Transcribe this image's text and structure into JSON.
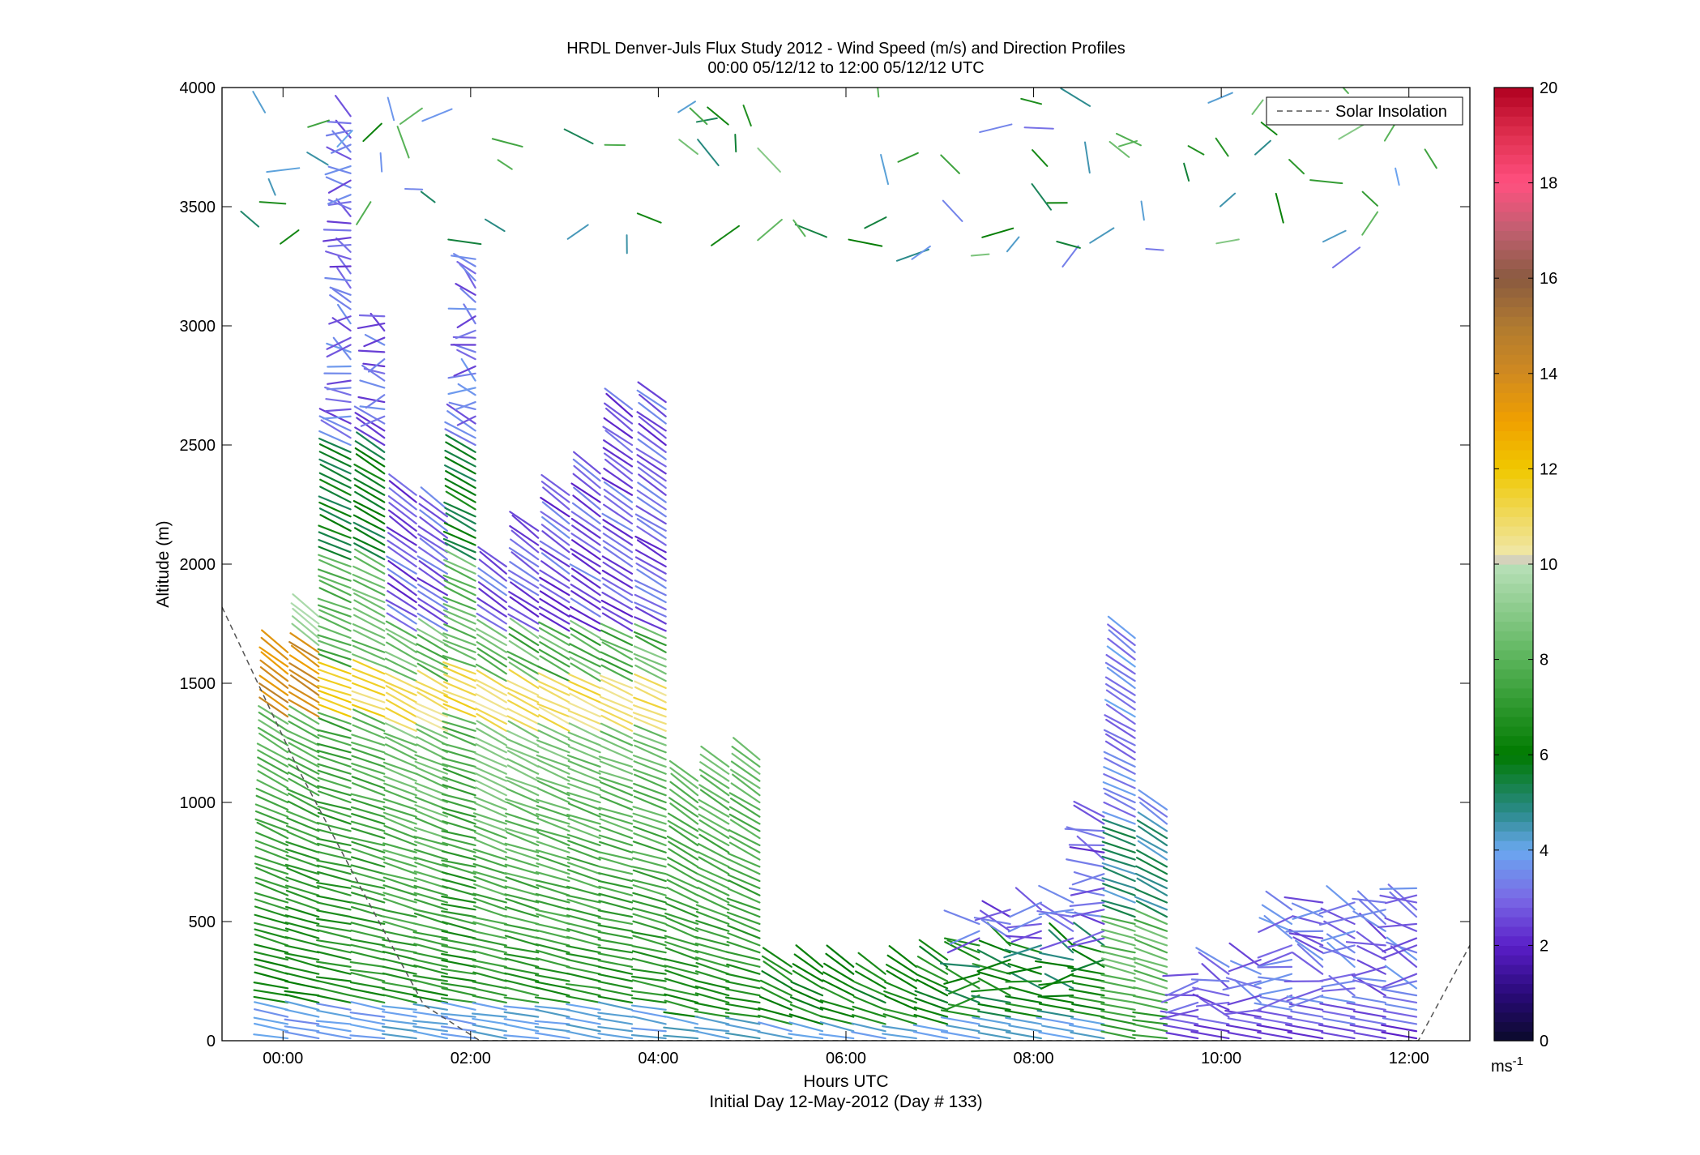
{
  "chart_data": {
    "type": "scatter",
    "title_line1": "HRDL Denver-Juls Flux Study 2012 - Wind Speed (m/s) and Direction Profiles",
    "title_line2": "00:00 05/12/12 to 12:00 05/12/12  UTC",
    "xlabel": "Hours UTC",
    "xlabel_sub": "Initial Day 12-May-2012 (Day # 133)",
    "ylabel": "Altitude (m)",
    "xlim": [
      -0.65,
      12.65
    ],
    "ylim": [
      0,
      4000
    ],
    "xticks": [
      0,
      2,
      4,
      6,
      8,
      10,
      12
    ],
    "xtick_labels": [
      "00:00",
      "02:00",
      "04:00",
      "06:00",
      "08:00",
      "10:00",
      "12:00"
    ],
    "yticks": [
      0,
      500,
      1000,
      1500,
      2000,
      2500,
      3000,
      3500,
      4000
    ],
    "ytick_labels": [
      "0",
      "500",
      "1000",
      "1500",
      "2000",
      "2500",
      "3000",
      "3500",
      "4000"
    ],
    "legend": {
      "entries": [
        "Solar Insolation"
      ],
      "placement": "top-right"
    },
    "colorbar": {
      "range": [
        0,
        20
      ],
      "ticks": [
        0,
        2,
        4,
        6,
        8,
        10,
        12,
        14,
        16,
        18,
        20
      ],
      "tick_labels": [
        "0",
        "2",
        "4",
        "6",
        "8",
        "10",
        "12",
        "14",
        "16",
        "18",
        "20"
      ],
      "unit_label": "ms",
      "unit_exponent": "-1",
      "color_stops": [
        {
          "v": 0,
          "c": "#0a0a2a"
        },
        {
          "v": 1,
          "c": "#2a0a7a"
        },
        {
          "v": 2,
          "c": "#5a1ec8"
        },
        {
          "v": 3,
          "c": "#7a6ae6"
        },
        {
          "v": 4,
          "c": "#6aa8f0"
        },
        {
          "v": 4.8,
          "c": "#2a8a8a"
        },
        {
          "v": 6,
          "c": "#007a00"
        },
        {
          "v": 8,
          "c": "#5ab45a"
        },
        {
          "v": 9.9,
          "c": "#b4deb4"
        },
        {
          "v": 10,
          "c": "#c8c8c8"
        },
        {
          "v": 10.3,
          "c": "#f0e6a0"
        },
        {
          "v": 12,
          "c": "#f0c800"
        },
        {
          "v": 13,
          "c": "#f0a000"
        },
        {
          "v": 14,
          "c": "#d08a20"
        },
        {
          "v": 15,
          "c": "#b07a30"
        },
        {
          "v": 16,
          "c": "#8a5a40"
        },
        {
          "v": 17,
          "c": "#c06070"
        },
        {
          "v": 18,
          "c": "#ff5080"
        },
        {
          "v": 19,
          "c": "#e03050"
        },
        {
          "v": 20,
          "c": "#b00020"
        }
      ]
    },
    "solar_insolation": {
      "style": "dashed",
      "color": "#555555",
      "x": [
        -0.65,
        0.15,
        0.75,
        1.5,
        2.1,
        12.1,
        12.65
      ],
      "y": [
        1820,
        1150,
        700,
        150,
        0,
        0,
        400
      ]
    },
    "profiles": [
      {
        "x": 0.05,
        "top": 1650,
        "profile": "lowjet"
      },
      {
        "x": 0.38,
        "top": 1800,
        "profile": "lowjet"
      },
      {
        "x": 0.72,
        "top": 3900,
        "profile": "tall"
      },
      {
        "x": 1.08,
        "top": 3050,
        "profile": "tall"
      },
      {
        "x": 1.42,
        "top": 2300,
        "profile": "mid"
      },
      {
        "x": 1.75,
        "top": 2250,
        "profile": "mid"
      },
      {
        "x": 2.05,
        "top": 3300,
        "profile": "tall"
      },
      {
        "x": 2.38,
        "top": 2000,
        "profile": "mid"
      },
      {
        "x": 2.72,
        "top": 2150,
        "profile": "mid"
      },
      {
        "x": 3.05,
        "top": 2300,
        "profile": "mid"
      },
      {
        "x": 3.38,
        "top": 2400,
        "profile": "mid"
      },
      {
        "x": 3.72,
        "top": 2650,
        "profile": "mid"
      },
      {
        "x": 4.08,
        "top": 2700,
        "profile": "mid"
      },
      {
        "x": 4.42,
        "top": 1100,
        "profile": "low"
      },
      {
        "x": 4.75,
        "top": 1150,
        "profile": "low"
      },
      {
        "x": 5.08,
        "top": 1200,
        "profile": "low"
      },
      {
        "x": 5.42,
        "top": 320,
        "profile": "surface"
      },
      {
        "x": 5.75,
        "top": 310,
        "profile": "surface"
      },
      {
        "x": 6.08,
        "top": 330,
        "profile": "surface"
      },
      {
        "x": 6.42,
        "top": 300,
        "profile": "surface"
      },
      {
        "x": 6.75,
        "top": 320,
        "profile": "surface"
      },
      {
        "x": 7.08,
        "top": 350,
        "profile": "surface"
      },
      {
        "x": 7.42,
        "top": 500,
        "profile": "surfaceb"
      },
      {
        "x": 7.75,
        "top": 550,
        "profile": "surfaceb"
      },
      {
        "x": 8.08,
        "top": 600,
        "profile": "surfaceb"
      },
      {
        "x": 8.42,
        "top": 600,
        "profile": "surfaceb"
      },
      {
        "x": 8.75,
        "top": 950,
        "profile": "surfaceb"
      },
      {
        "x": 9.08,
        "top": 1700,
        "profile": "night"
      },
      {
        "x": 9.42,
        "top": 980,
        "profile": "night"
      },
      {
        "x": 9.75,
        "top": 300,
        "profile": "purple"
      },
      {
        "x": 10.08,
        "top": 320,
        "profile": "purple"
      },
      {
        "x": 10.42,
        "top": 350,
        "profile": "purple"
      },
      {
        "x": 10.75,
        "top": 550,
        "profile": "purple"
      },
      {
        "x": 11.08,
        "top": 580,
        "profile": "purple"
      },
      {
        "x": 11.42,
        "top": 600,
        "profile": "purple"
      },
      {
        "x": 11.75,
        "top": 600,
        "profile": "purple"
      },
      {
        "x": 12.08,
        "top": 650,
        "profile": "purple"
      }
    ]
  }
}
